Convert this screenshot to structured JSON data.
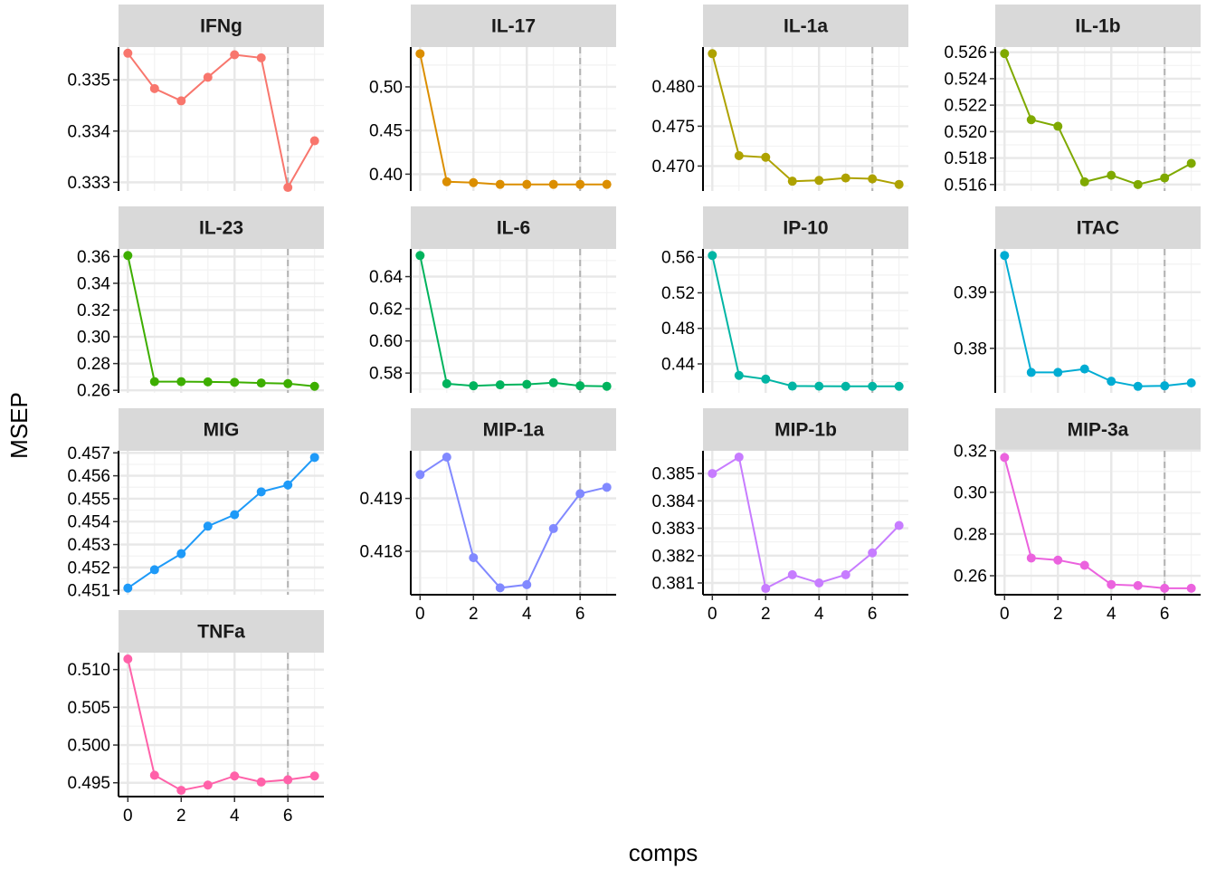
{
  "chart_data": {
    "type": "line",
    "facet_layout": "4 columns, 4 rows, free y scales",
    "xlabel": "comps",
    "ylabel": "MSEP",
    "x": [
      0,
      1,
      2,
      3,
      4,
      5,
      6,
      7
    ],
    "x_ticks": [
      0,
      2,
      4,
      6
    ],
    "x_range": [
      -0.35,
      7.35
    ],
    "reference_line_x": 6,
    "grid": true,
    "legend": "none",
    "panels": [
      {
        "name": "IFNg",
        "color": "#F8766D",
        "values": [
          0.33552,
          0.33483,
          0.33459,
          0.33505,
          0.33549,
          0.33543,
          0.3329,
          0.33381
        ],
        "y_ticks": [
          0.333,
          0.334,
          0.335
        ],
        "y_tick_labels": [
          "0.333",
          "0.334",
          "0.335"
        ],
        "ylim": [
          0.33283,
          0.33564
        ]
      },
      {
        "name": "IL-17",
        "color": "#DB8E00",
        "values": [
          0.538,
          0.3913,
          0.3903,
          0.3883,
          0.3883,
          0.3883,
          0.3883,
          0.3883
        ],
        "y_ticks": [
          0.4,
          0.45,
          0.5
        ],
        "y_tick_labels": [
          "0.40",
          "0.45",
          "0.50"
        ],
        "ylim": [
          0.3807,
          0.5456
        ]
      },
      {
        "name": "IL-1a",
        "color": "#AEA200",
        "values": [
          0.4841,
          0.4713,
          0.4711,
          0.4681,
          0.4682,
          0.4685,
          0.4684,
          0.4677
        ],
        "y_ticks": [
          0.47,
          0.475,
          0.48
        ],
        "y_tick_labels": [
          "0.470",
          "0.475",
          "0.480"
        ],
        "ylim": [
          0.46687,
          0.48493
        ]
      },
      {
        "name": "IL-1b",
        "color": "#7FA900",
        "values": [
          0.5259,
          0.5209,
          0.5204,
          0.5162,
          0.5167,
          0.516,
          0.5165,
          0.5176
        ],
        "y_ticks": [
          0.516,
          0.518,
          0.52,
          0.522,
          0.524,
          0.526
        ],
        "y_tick_labels": [
          "0.516",
          "0.518",
          "0.520",
          "0.522",
          "0.524",
          "0.526"
        ],
        "ylim": [
          0.51551,
          0.52639
        ]
      },
      {
        "name": "IL-23",
        "color": "#3DAE00",
        "values": [
          0.3608,
          0.2665,
          0.2665,
          0.2663,
          0.266,
          0.2655,
          0.265,
          0.263
        ],
        "y_ticks": [
          0.26,
          0.28,
          0.3,
          0.32,
          0.34,
          0.36
        ],
        "y_tick_labels": [
          "0.26",
          "0.28",
          "0.30",
          "0.32",
          "0.34",
          "0.36"
        ],
        "ylim": [
          0.2581,
          0.3657
        ]
      },
      {
        "name": "IL-6",
        "color": "#00B35D",
        "values": [
          0.6531,
          0.5734,
          0.5721,
          0.5727,
          0.573,
          0.574,
          0.5721,
          0.5718
        ],
        "y_ticks": [
          0.58,
          0.6,
          0.62,
          0.64
        ],
        "y_tick_labels": [
          "0.58",
          "0.60",
          "0.62",
          "0.64"
        ],
        "ylim": [
          0.5677,
          0.6572
        ]
      },
      {
        "name": "IP-10",
        "color": "#00B5A4",
        "values": [
          0.562,
          0.427,
          0.4229,
          0.415,
          0.4149,
          0.4148,
          0.4148,
          0.4148
        ],
        "y_ticks": [
          0.44,
          0.48,
          0.52,
          0.56
        ],
        "y_tick_labels": [
          "0.44",
          "0.48",
          "0.52",
          "0.56"
        ],
        "ylim": [
          0.4074,
          0.5694
        ]
      },
      {
        "name": "ITAC",
        "color": "#00ACD3",
        "values": [
          0.39654,
          0.37571,
          0.37571,
          0.37632,
          0.37414,
          0.37323,
          0.37333,
          0.37384
        ],
        "y_ticks": [
          0.38,
          0.39
        ],
        "y_tick_labels": [
          "0.38",
          "0.39"
        ],
        "ylim": [
          0.37207,
          0.3977
        ]
      },
      {
        "name": "MIG",
        "color": "#1E9AF8",
        "values": [
          0.4511,
          0.4519,
          0.4526,
          0.4538,
          0.4543,
          0.4553,
          0.4556,
          0.4568
        ],
        "y_ticks": [
          0.451,
          0.452,
          0.453,
          0.454,
          0.455,
          0.456,
          0.457
        ],
        "y_tick_labels": [
          "0.451",
          "0.452",
          "0.453",
          "0.454",
          "0.455",
          "0.456",
          "0.457"
        ],
        "ylim": [
          0.45081,
          0.45709
        ]
      },
      {
        "name": "MIP-1a",
        "color": "#8189FF",
        "values": [
          0.41945,
          0.41978,
          0.41788,
          0.41731,
          0.41737,
          0.41843,
          0.41909,
          0.41921
        ],
        "y_ticks": [
          0.418,
          0.419
        ],
        "y_tick_labels": [
          "0.418",
          "0.419"
        ],
        "ylim": [
          0.41718,
          0.4199
        ]
      },
      {
        "name": "MIP-1b",
        "color": "#C77CFF",
        "values": [
          0.385,
          0.3856,
          0.3808,
          0.3813,
          0.381,
          0.3813,
          0.3821,
          0.3831
        ],
        "y_ticks": [
          0.381,
          0.382,
          0.383,
          0.384,
          0.385
        ],
        "y_tick_labels": [
          "0.381",
          "0.382",
          "0.383",
          "0.384",
          "0.385"
        ],
        "ylim": [
          0.38057,
          0.38583
        ]
      },
      {
        "name": "MIP-3a",
        "color": "#EB62DE",
        "values": [
          0.3167,
          0.2685,
          0.2675,
          0.265,
          0.2558,
          0.2553,
          0.254,
          0.254
        ],
        "y_ticks": [
          0.26,
          0.28,
          0.3,
          0.32
        ],
        "y_tick_labels": [
          "0.26",
          "0.28",
          "0.30",
          "0.32"
        ],
        "ylim": [
          0.2509,
          0.3199
        ]
      },
      {
        "name": "TNFa",
        "color": "#FF61A9",
        "values": [
          0.5114,
          0.496,
          0.494,
          0.4947,
          0.4959,
          0.4951,
          0.4954,
          0.4959
        ],
        "y_ticks": [
          0.495,
          0.5,
          0.505,
          0.51
        ],
        "y_tick_labels": [
          "0.495",
          "0.500",
          "0.505",
          "0.510"
        ],
        "ylim": [
          0.49317,
          0.51224
        ]
      }
    ]
  }
}
